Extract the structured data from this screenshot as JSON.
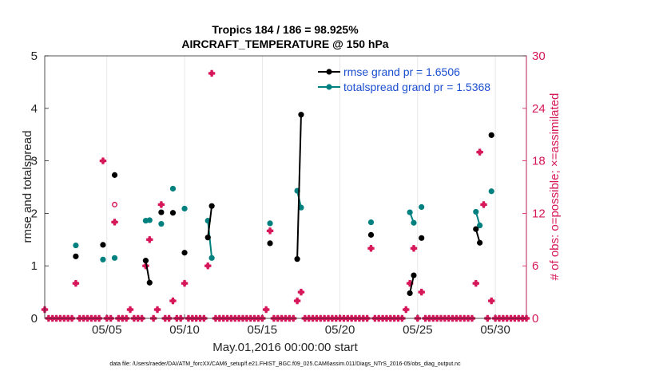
{
  "chart_data": {
    "type": "line",
    "title_line1": "Tropics 184 / 186 = 98.925%",
    "title_line2": "AIRCRAFT_TEMPERATURE @ 150 hPa",
    "xlabel": "May.01,2016 00:00:00 start",
    "ylabel_left": "rmse and totalspread",
    "ylabel_right": "# of obs: o=possible; ×=assimilated",
    "footer": "data file: /Users/raeder/DAI/ATM_forcXX/CAM6_setup/f.e21.FHIST_BGC.f09_025.CAM6assim.011/Diags_NTrS_2016-05/obs_diag_output.nc",
    "xlim": [
      1,
      32
    ],
    "ylim_left": [
      0,
      5
    ],
    "ylim_right": [
      0,
      30
    ],
    "x_ticks": [
      5,
      10,
      15,
      20,
      25,
      30
    ],
    "x_tick_labels": [
      "05/05",
      "05/10",
      "05/15",
      "05/20",
      "05/25",
      "05/30"
    ],
    "y_ticks_left": [
      0,
      1,
      2,
      3,
      4,
      5
    ],
    "y_tick_labels_left": [
      "0",
      "1",
      "2",
      "3",
      "4",
      "5"
    ],
    "y_ticks_right": [
      0,
      6,
      12,
      18,
      24,
      30
    ],
    "y_tick_labels_right": [
      "0",
      "6",
      "12",
      "18",
      "24",
      "30"
    ],
    "colors": {
      "rmse": "#000000",
      "spread": "#00807f",
      "obs": "#d6175a",
      "axis": "#262626",
      "legend_text": "#1a4fd0"
    },
    "legend": [
      {
        "name": "rmse grand pr = 1.6506",
        "key": "rmse"
      },
      {
        "name": "totalspread grand pr = 1.5368",
        "key": "spread"
      }
    ],
    "rmse_segments": [
      [
        [
          3.0,
          1.18
        ]
      ],
      [
        [
          4.75,
          1.4
        ]
      ],
      [
        [
          5.5,
          2.73
        ]
      ],
      [
        [
          7.5,
          1.1
        ],
        [
          7.75,
          0.68
        ]
      ],
      [
        [
          8.5,
          2.02
        ]
      ],
      [
        [
          9.25,
          2.01
        ]
      ],
      [
        [
          10.0,
          1.25
        ]
      ],
      [
        [
          11.5,
          1.54
        ],
        [
          11.75,
          2.14
        ]
      ],
      [
        [
          15.5,
          1.43
        ]
      ],
      [
        [
          17.25,
          1.13
        ],
        [
          17.5,
          3.88
        ]
      ],
      [
        [
          22.0,
          1.59
        ]
      ],
      [
        [
          24.5,
          0.48
        ],
        [
          24.75,
          0.82
        ]
      ],
      [
        [
          25.25,
          1.53
        ]
      ],
      [
        [
          28.75,
          1.7
        ],
        [
          29.0,
          1.44
        ]
      ],
      [
        [
          29.75,
          3.49
        ]
      ]
    ],
    "spread_segments": [
      [
        [
          3.0,
          1.39
        ]
      ],
      [
        [
          4.75,
          1.12
        ]
      ],
      [
        [
          5.5,
          1.15
        ]
      ],
      [
        [
          7.5,
          1.86
        ],
        [
          7.75,
          1.87
        ]
      ],
      [
        [
          8.5,
          1.8
        ]
      ],
      [
        [
          9.25,
          2.47
        ]
      ],
      [
        [
          10.0,
          2.09
        ]
      ],
      [
        [
          11.5,
          1.86
        ],
        [
          11.75,
          1.15
        ]
      ],
      [
        [
          15.5,
          1.81
        ]
      ],
      [
        [
          17.25,
          2.43
        ],
        [
          17.5,
          2.11
        ]
      ],
      [
        [
          22.0,
          1.83
        ]
      ],
      [
        [
          24.5,
          2.02
        ],
        [
          24.75,
          1.82
        ]
      ],
      [
        [
          25.25,
          2.12
        ]
      ],
      [
        [
          28.75,
          2.03
        ],
        [
          29.0,
          1.77
        ]
      ],
      [
        [
          29.75,
          2.42
        ]
      ]
    ],
    "obs_assimilated_nonzero": [
      [
        1.0,
        1
      ],
      [
        3.0,
        4
      ],
      [
        4.75,
        18
      ],
      [
        5.5,
        11
      ],
      [
        6.5,
        1
      ],
      [
        7.5,
        6
      ],
      [
        7.75,
        9
      ],
      [
        8.25,
        1
      ],
      [
        8.5,
        13
      ],
      [
        9.25,
        2
      ],
      [
        10.0,
        4
      ],
      [
        11.5,
        6
      ],
      [
        11.75,
        28
      ],
      [
        15.25,
        1
      ],
      [
        15.5,
        10
      ],
      [
        17.25,
        2
      ],
      [
        17.5,
        3
      ],
      [
        22.0,
        8
      ],
      [
        24.25,
        1
      ],
      [
        24.5,
        4
      ],
      [
        24.75,
        8
      ],
      [
        25.25,
        3
      ],
      [
        28.75,
        4
      ],
      [
        29.0,
        19
      ],
      [
        29.25,
        13
      ],
      [
        29.75,
        2
      ]
    ],
    "obs_possible_extra": [
      [
        5.5,
        13
      ]
    ],
    "zero_obs_x_start": 1.0,
    "zero_obs_x_end": 32.0,
    "zero_obs_x_step": 0.25
  }
}
